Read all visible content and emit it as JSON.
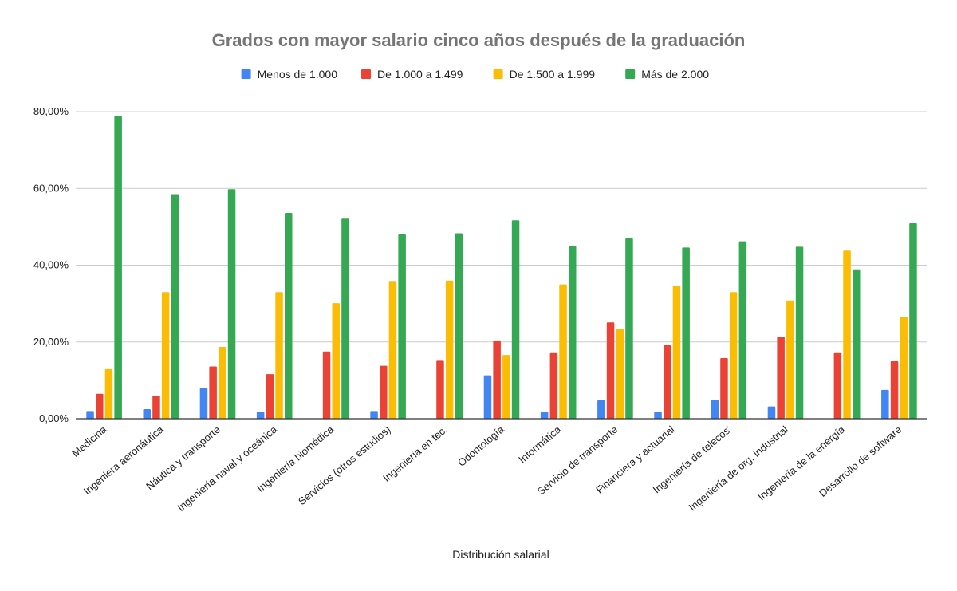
{
  "chart_data": {
    "type": "bar",
    "title": "Grados con mayor salario cinco años después de la graduación",
    "xlabel": "Distribución salarial",
    "ylabel": "",
    "ylim": [
      0,
      80
    ],
    "yticks": [
      "0,00%",
      "20,00%",
      "40,00%",
      "60,00%",
      "80,00%"
    ],
    "ytick_values": [
      0,
      20,
      40,
      60,
      80
    ],
    "grid": true,
    "legend_position": "top",
    "categories": [
      "Medicina",
      "Ingeniera aeronáutica",
      "Náutica y transporte",
      "Ingeniería naval y oceánica",
      "Ingeniería biomédica",
      "Servicios (otros estudios)",
      "Ingeniería en tec.",
      "Odontología",
      "Informática",
      "Servicio de transporte",
      "Financiera y actuarial",
      "Ingeniería de telecos'",
      "Ingeniería de org. industrial",
      "Ingeniería de la energía",
      "Desarrollo de software"
    ],
    "series": [
      {
        "name": "Menos de 1.000",
        "color": "#4285F4",
        "values": [
          2.0,
          2.5,
          8.0,
          1.8,
          0,
          2.0,
          0,
          11.3,
          1.8,
          4.8,
          1.8,
          5.0,
          3.2,
          0,
          7.5
        ]
      },
      {
        "name": "De 1.000 a 1.499",
        "color": "#EA4335",
        "values": [
          6.5,
          6.0,
          13.6,
          11.6,
          17.5,
          13.8,
          15.3,
          20.4,
          17.3,
          25.1,
          19.3,
          15.8,
          21.4,
          17.3,
          15.0
        ]
      },
      {
        "name": "De 1.500 a 1.999",
        "color": "#FBBC04",
        "values": [
          12.9,
          33.0,
          18.7,
          33.0,
          30.1,
          35.9,
          36.0,
          16.6,
          35.0,
          23.4,
          34.7,
          33.0,
          30.8,
          43.8,
          26.6
        ]
      },
      {
        "name": "Más de 2.000",
        "color": "#34A853",
        "values": [
          78.8,
          58.5,
          59.8,
          53.6,
          52.3,
          48.0,
          48.3,
          51.7,
          44.9,
          47.0,
          44.6,
          46.2,
          44.8,
          38.9,
          50.9
        ]
      }
    ]
  }
}
